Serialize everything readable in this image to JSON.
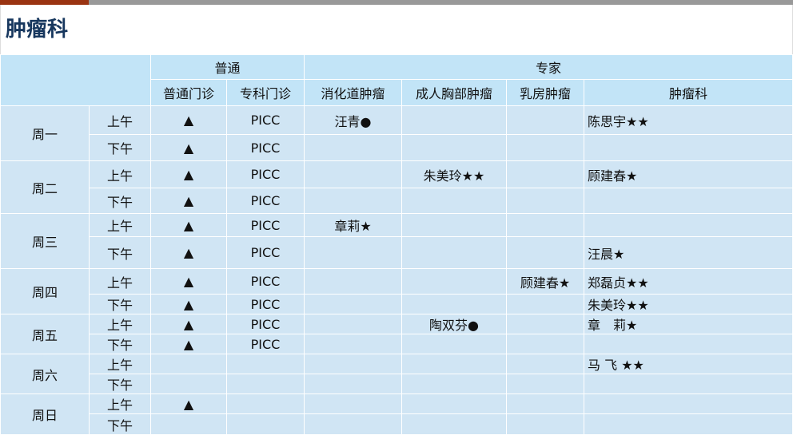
{
  "title": "肿瘤科",
  "header": {
    "group_general": "普通",
    "group_expert": "专家",
    "columns": [
      "普通门诊",
      "专科门诊",
      "消化道肿瘤",
      "成人胸部肿瘤",
      "乳房肿瘤",
      "肿瘤科"
    ]
  },
  "colors": {
    "title": "#17375e",
    "header_bg": "#c2e4f7",
    "body_bg": "#d0e5f4",
    "accent_bar": "#9a3412"
  },
  "days": [
    {
      "day": "周一",
      "rows": [
        {
          "period": "上午",
          "cells": [
            "▲",
            "PICC",
            "汪青●",
            "",
            "",
            "陈思宇★★"
          ]
        },
        {
          "period": "下午",
          "cells": [
            "▲",
            "PICC",
            "",
            "",
            "",
            ""
          ]
        }
      ]
    },
    {
      "day": "周二",
      "rows": [
        {
          "period": "上午",
          "cells": [
            "▲",
            "PICC",
            "",
            "朱美玲★★",
            "",
            "顾建春★"
          ]
        },
        {
          "period": "下午",
          "cells": [
            "▲",
            "PICC",
            "",
            "",
            "",
            ""
          ]
        }
      ]
    },
    {
      "day": "周三",
      "rows": [
        {
          "period": "上午",
          "cells": [
            "▲",
            "PICC",
            "章莉★",
            "",
            "",
            ""
          ]
        },
        {
          "period": "下午",
          "cells": [
            "▲",
            "PICC",
            "",
            "",
            "",
            "汪晨★"
          ]
        }
      ]
    },
    {
      "day": "周四",
      "rows": [
        {
          "period": "上午",
          "cells": [
            "▲",
            "PICC",
            "",
            "",
            "顾建春★",
            "郑磊贞★★"
          ]
        },
        {
          "period": "下午",
          "cells": [
            "▲",
            "PICC",
            "",
            "",
            "",
            "朱美玲★★"
          ]
        }
      ]
    },
    {
      "day": "周五",
      "rows": [
        {
          "period": "上午",
          "cells": [
            "▲",
            "PICC",
            "",
            "陶双芬●",
            "",
            "章　莉★"
          ]
        },
        {
          "period": "下午",
          "cells": [
            "▲",
            "PICC",
            "",
            "",
            "",
            ""
          ]
        }
      ]
    },
    {
      "day": "周六",
      "rows": [
        {
          "period": "上午",
          "cells": [
            "",
            "",
            "",
            "",
            "",
            "马 飞 ★★"
          ]
        },
        {
          "period": "下午",
          "cells": [
            "",
            "",
            "",
            "",
            "",
            ""
          ]
        }
      ]
    },
    {
      "day": "周日",
      "rows": [
        {
          "period": "上午",
          "cells": [
            "▲",
            "",
            "",
            "",
            "",
            ""
          ]
        },
        {
          "period": "下午",
          "cells": [
            "",
            "",
            "",
            "",
            "",
            ""
          ]
        }
      ]
    }
  ]
}
